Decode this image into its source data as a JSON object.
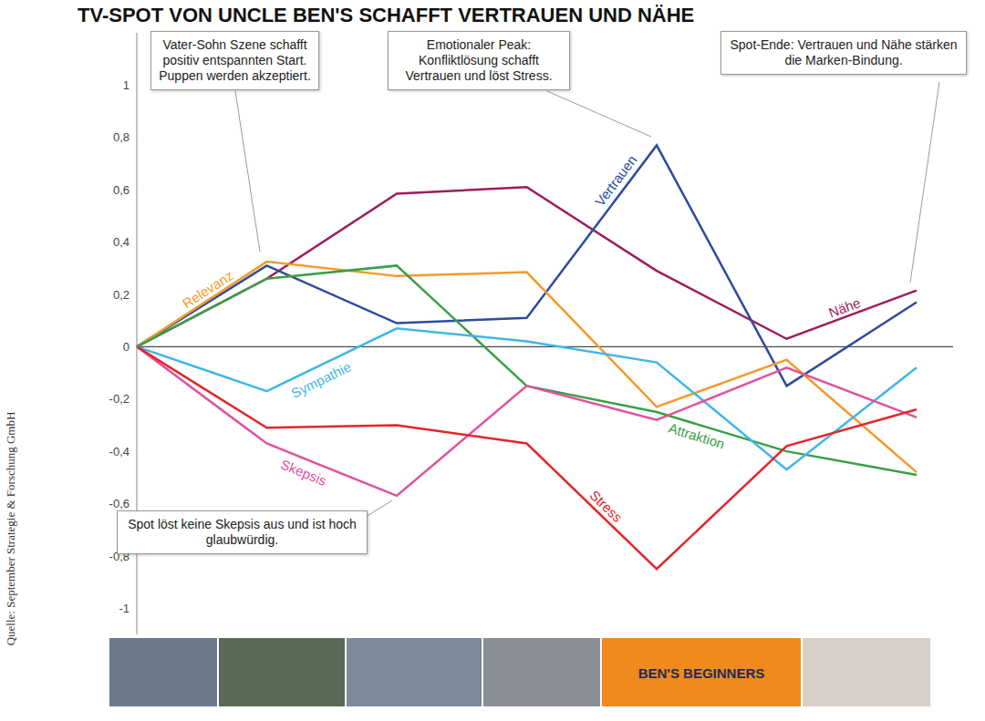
{
  "chart_data": {
    "type": "line",
    "title": "TV-SPOT VON UNCLE BEN'S SCHAFFT VERTRAUEN UND NÄHE",
    "categories": [
      null,
      null,
      null,
      null,
      null,
      null,
      null
    ],
    "series": [
      {
        "name": "Nähe",
        "color": "#9b1d5a",
        "values": [
          0,
          0.26,
          0.585,
          0.61,
          0.29,
          0.03,
          0.215
        ]
      },
      {
        "name": "Vertrauen",
        "color": "#2f4b9c",
        "values": [
          0,
          0.31,
          0.09,
          0.11,
          0.77,
          -0.15,
          0.17
        ]
      },
      {
        "name": "Relevanz",
        "color": "#f39a2c",
        "values": [
          0,
          0.325,
          0.27,
          0.285,
          -0.23,
          -0.05,
          -0.48
        ]
      },
      {
        "name": "Attraktion",
        "color": "#3a9e47",
        "values": [
          0,
          0.26,
          0.31,
          -0.15,
          -0.25,
          -0.4,
          -0.49
        ]
      },
      {
        "name": "Sympathie",
        "color": "#3fb6e8",
        "values": [
          0,
          -0.17,
          0.07,
          0.02,
          -0.06,
          -0.47,
          -0.08
        ]
      },
      {
        "name": "Skepsis",
        "color": "#e0519c",
        "values": [
          0,
          -0.37,
          -0.57,
          -0.15,
          -0.28,
          -0.08,
          -0.27
        ]
      },
      {
        "name": "Stress",
        "color": "#e3262b",
        "values": [
          0,
          -0.31,
          -0.3,
          -0.37,
          -0.85,
          -0.38,
          -0.24
        ]
      }
    ],
    "ylim": [
      -1.1,
      1.2
    ],
    "yticks": [
      -1,
      {
        "value": -0.8,
        "label": "-0,8"
      },
      {
        "value": -0.6,
        "label": "-0,6"
      },
      {
        "value": -0.4,
        "label": "-0,4"
      },
      {
        "value": -0.2,
        "label": "-0,2"
      },
      0,
      {
        "value": 0.2,
        "label": "0,2"
      },
      {
        "value": 0.4,
        "label": "0,4"
      },
      {
        "value": 0.6,
        "label": "0,6"
      },
      {
        "value": 0.8,
        "label": "0,8"
      },
      1
    ],
    "reference_line": 0,
    "tick_labels": "y",
    "grid": false,
    "annotations": [
      "Vater-Sohn Szene schafft positiv entspannten Start. Puppen werden akzeptiert.",
      "Emotionaler Peak: Konfliktlösung schafft Vertrauen und löst Stress.",
      "Spot-Ende: Vertrauen und Nähe stärken die Marken-Bindung.",
      "Spot löst keine Skepsis aus und ist hoch glaubwürdig."
    ],
    "source": "Quelle: September Strategie & Forschung GmbH",
    "logo": "BEN'S BEGINNERS"
  }
}
